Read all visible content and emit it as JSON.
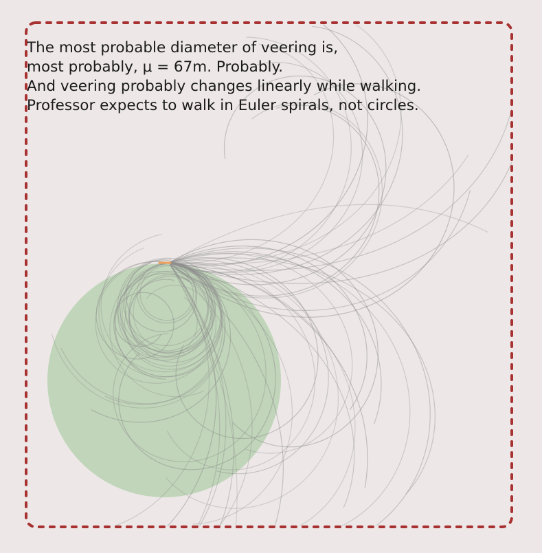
{
  "caption": {
    "lines": [
      "The most probable diameter of veering is,",
      "most probably, μ = 67m. Probably.",
      "And veering probably changes linearly while walking.",
      "Professor expects to walk in Euler spirals, not circles."
    ]
  },
  "colors": {
    "background": "#ede8e7",
    "frame": "#a83232",
    "circle_fill": "#b9d1b3",
    "path_stroke": "#8f8f8f",
    "start_marker": "#f0a05a"
  },
  "diagram": {
    "icon": "dashed-rounded-frame",
    "mean_diameter_m": 67,
    "path_shape": "euler-spiral"
  }
}
